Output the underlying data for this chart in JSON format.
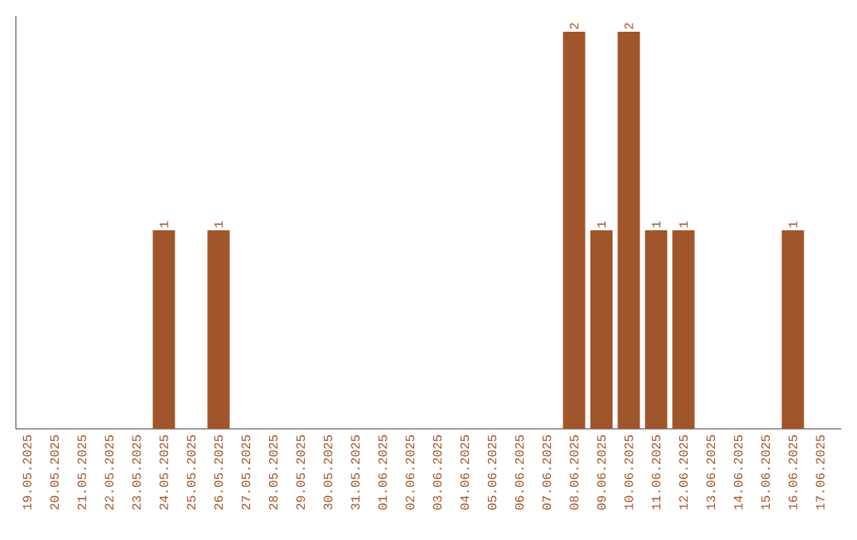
{
  "chart_data": {
    "type": "bar",
    "categories": [
      "19.05.2025",
      "20.05.2025",
      "21.05.2025",
      "22.05.2025",
      "23.05.2025",
      "24.05.2025",
      "25.05.2025",
      "26.05.2025",
      "27.05.2025",
      "28.05.2025",
      "29.05.2025",
      "30.05.2025",
      "31.05.2025",
      "01.06.2025",
      "02.06.2025",
      "03.06.2025",
      "04.06.2025",
      "05.06.2025",
      "06.06.2025",
      "07.06.2025",
      "08.06.2025",
      "09.06.2025",
      "10.06.2025",
      "11.06.2025",
      "12.06.2025",
      "13.06.2025",
      "14.06.2025",
      "15.06.2025",
      "16.06.2025",
      "17.06.2025"
    ],
    "values": [
      0,
      0,
      0,
      0,
      0,
      1,
      0,
      1,
      0,
      0,
      0,
      0,
      0,
      0,
      0,
      0,
      0,
      0,
      0,
      0,
      2,
      1,
      2,
      1,
      1,
      0,
      0,
      0,
      1,
      0
    ],
    "value_labels": [
      null,
      null,
      null,
      null,
      null,
      "1",
      null,
      "1",
      null,
      null,
      null,
      null,
      null,
      null,
      null,
      null,
      null,
      null,
      null,
      null,
      "2",
      "1",
      "2",
      "1",
      "1",
      null,
      null,
      null,
      "1",
      null
    ],
    "color": "#a0552a"
  }
}
